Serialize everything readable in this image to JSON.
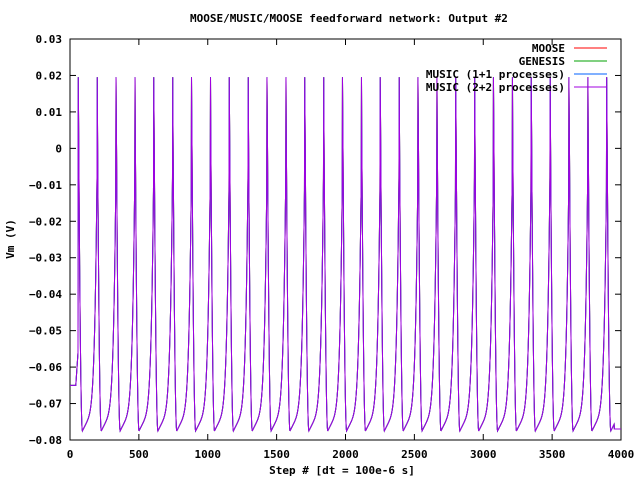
{
  "chart_data": {
    "type": "line",
    "title": "MOOSE/MUSIC/MOOSE feedforward network: Output #2",
    "xlabel": "Step # [dt = 100e-6 s]",
    "ylabel": "Vm (V)",
    "xlim": [
      0,
      4000
    ],
    "ylim": [
      -0.08,
      0.03
    ],
    "x_ticks": [
      0,
      500,
      1000,
      1500,
      2000,
      2500,
      3000,
      3500,
      4000
    ],
    "y_ticks": [
      -0.08,
      -0.07,
      -0.06,
      -0.05,
      -0.04,
      -0.03,
      -0.02,
      -0.01,
      0,
      0.01,
      0.02,
      0.03
    ],
    "x_tick_labels": [
      "0",
      "500",
      "1000",
      "1500",
      "2000",
      "2500",
      "3000",
      "3500",
      "4000"
    ],
    "y_tick_labels": [
      "−0.08",
      "−0.07",
      "−0.06",
      "−0.05",
      "−0.04",
      "−0.03",
      "−0.02",
      "−0.01",
      "0",
      "0.01",
      "0.02",
      "0.03"
    ],
    "grid": false,
    "legend_position": "top-right",
    "series": [
      {
        "name": "MOOSE",
        "color": "#ff0000"
      },
      {
        "name": "GENESIS",
        "color": "#00a000"
      },
      {
        "name": "MUSIC (1+1 processes)",
        "color": "#0060ff"
      },
      {
        "name": "MUSIC (2+2 processes)",
        "color": "#a000e0"
      }
    ],
    "waveform": {
      "initial_value": -0.065,
      "first_spike_step": 60,
      "spike_period_steps": 137,
      "spike_count": 29,
      "spike_peak": 0.0195,
      "trough_value": -0.0775,
      "end_value": -0.077
    }
  }
}
